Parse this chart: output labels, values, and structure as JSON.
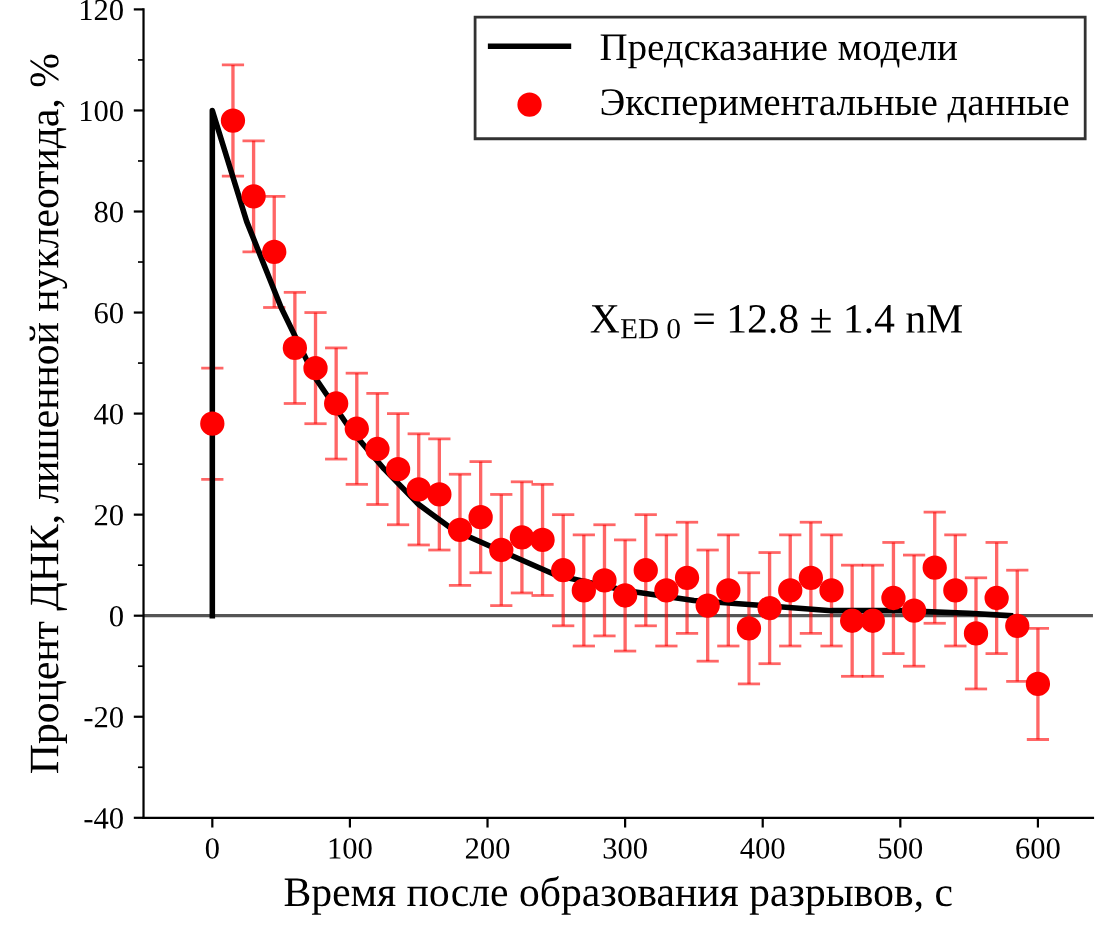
{
  "chart_data": {
    "type": "scatter",
    "xlabel": "Время после образования разрывов, с",
    "ylabel": "Процент ДНК, лишенной нуклеотида, %",
    "annotations": [
      "X$_{ED 0}$ = 12.8 ± 1.4 nM"
    ],
    "series": [
      {
        "name": "Предсказание модели",
        "type": "line",
        "color": "#000000",
        "marker": "none",
        "line_style": "solid",
        "x": [
          0,
          0,
          25,
          50,
          75,
          100,
          125,
          150,
          175,
          200,
          250,
          300,
          350,
          400,
          450,
          500,
          550,
          580
        ],
        "values": [
          0,
          100,
          78,
          61,
          47,
          37,
          29,
          22,
          17,
          14,
          8,
          5,
          3,
          2,
          1,
          1,
          0.5,
          0
        ]
      },
      {
        "name": "Экспериментальные данные",
        "color": "#ff0000",
        "marker": "circle",
        "x": [
          0,
          15,
          30,
          45,
          60,
          75,
          90,
          105,
          120,
          135,
          150,
          165,
          180,
          195,
          210,
          225,
          240,
          255,
          270,
          285,
          300,
          315,
          330,
          345,
          360,
          375,
          390,
          405,
          420,
          435,
          450,
          465,
          480,
          495,
          510,
          525,
          540,
          555,
          570,
          585,
          600
        ],
        "values": [
          38,
          98,
          83,
          72,
          53,
          49,
          42,
          37,
          33,
          29,
          25,
          24,
          17,
          19.5,
          13,
          15.5,
          15,
          9,
          5,
          7,
          4,
          9,
          5,
          7.5,
          2,
          5,
          -2.5,
          1.5,
          5,
          7.5,
          5,
          -1,
          -1,
          3.5,
          1,
          9.5,
          5,
          -3.5,
          3.5,
          -2,
          -13.5
        ],
        "errors": [
          11,
          11,
          11,
          11,
          11,
          11,
          11,
          11,
          11,
          11,
          11,
          11,
          11,
          11,
          11,
          11,
          11,
          11,
          11,
          11,
          11,
          11,
          11,
          11,
          11,
          11,
          11,
          11,
          11,
          11,
          11,
          11,
          11,
          11,
          11,
          11,
          11,
          11,
          11,
          11,
          11
        ]
      }
    ],
    "ref_lines": [
      {
        "axis": "y",
        "value": 0,
        "color": "#555555",
        "line_style": "solid"
      }
    ],
    "xlim": [
      -50,
      640
    ],
    "ylim": [
      -40,
      120
    ],
    "xticks": [
      0,
      100,
      200,
      300,
      400,
      500,
      600
    ],
    "yticks": [
      -40,
      -20,
      0,
      20,
      40,
      60,
      80,
      100,
      120
    ],
    "grid": false,
    "legend": "top right"
  }
}
